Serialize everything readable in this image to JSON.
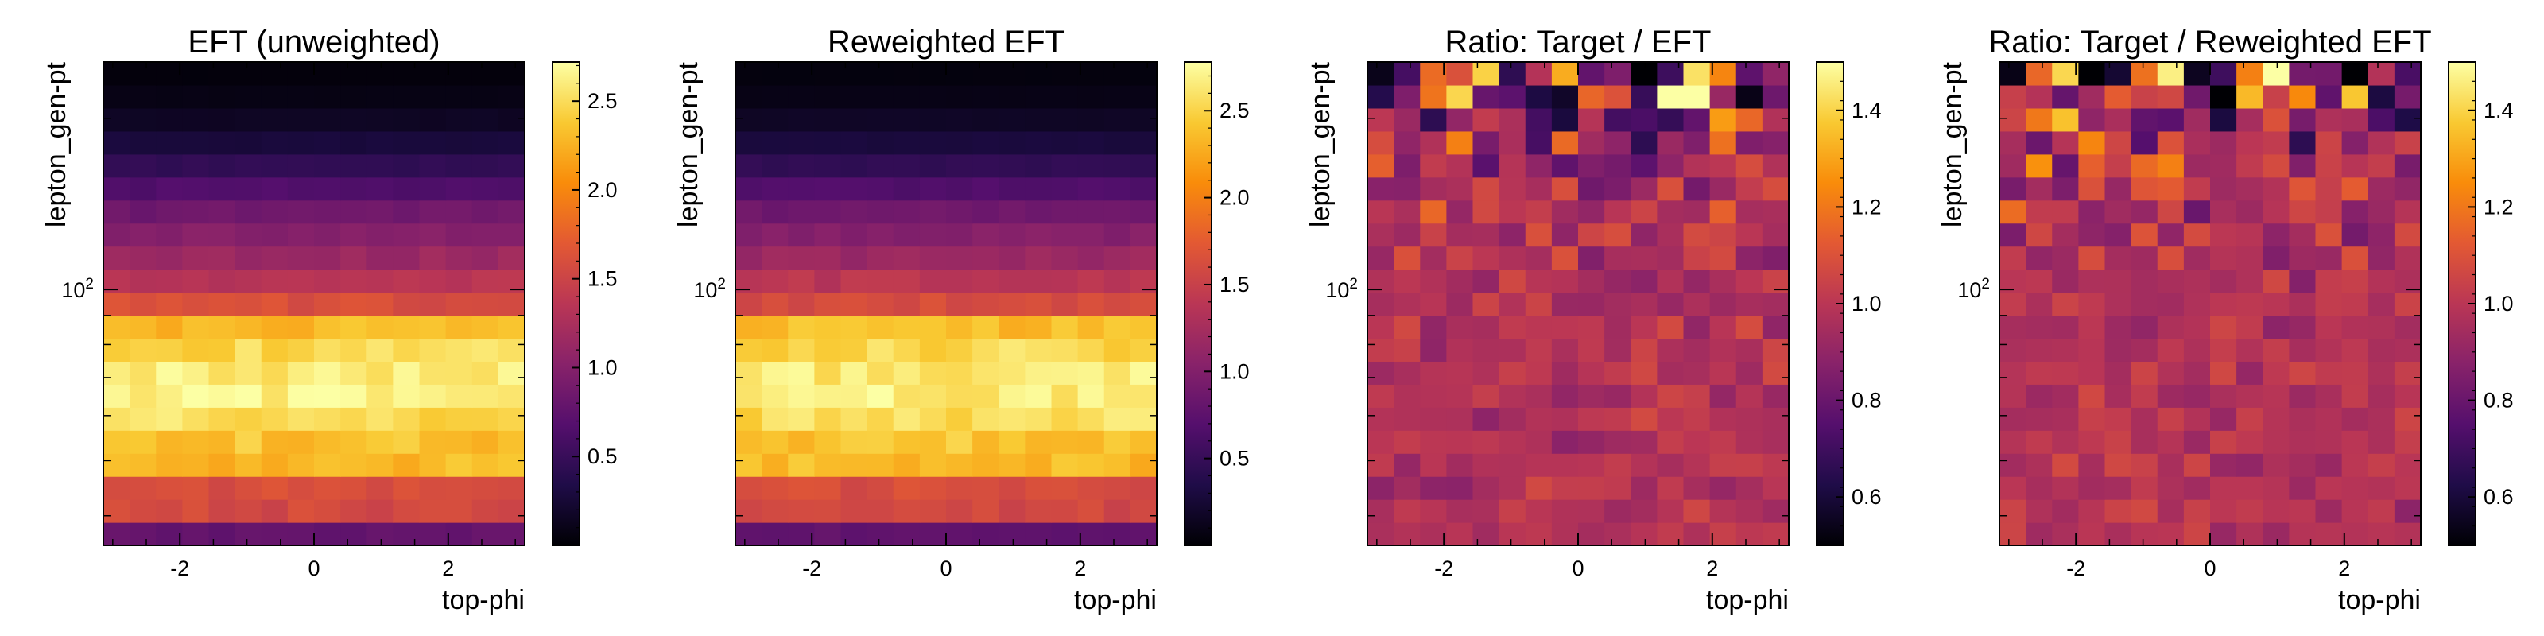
{
  "chart_data": [
    {
      "type": "heatmap",
      "title": "EFT (unweighted)",
      "xlabel": "top-phi",
      "ylabel": "lepton_gen-pt",
      "xlim": [
        -3.14,
        3.14
      ],
      "ylim_log10": [
        1.55,
        2.4
      ],
      "x_ticks": [
        -2,
        0,
        2
      ],
      "x_tick_labels": [
        "-2",
        "0",
        "2"
      ],
      "y_tick_label": "10",
      "y_tick_exp": "2",
      "colorbar_range": [
        0.0,
        2.72
      ],
      "colorbar_ticks": [
        0.5,
        1.0,
        1.5,
        2.0,
        2.5
      ],
      "colorbar_tick_labels": [
        "0.5",
        "1.0",
        "1.5",
        "2.0",
        "2.5"
      ],
      "colormap": "inferno",
      "nx": 16,
      "row_profile": [
        0.78,
        1.55,
        1.6,
        2.3,
        2.35,
        2.5,
        2.62,
        2.6,
        2.48,
        2.3,
        1.6,
        1.35,
        1.15,
        1.0,
        0.85,
        0.65,
        0.45,
        0.28,
        0.16,
        0.08,
        0.04
      ],
      "noise_amplitude": 0.05
    },
    {
      "type": "heatmap",
      "title": "Reweighted EFT",
      "xlabel": "top-phi",
      "ylabel": "lepton_gen-pt",
      "xlim": [
        -3.14,
        3.14
      ],
      "ylim_log10": [
        1.55,
        2.4
      ],
      "x_ticks": [
        -2,
        0,
        2
      ],
      "x_tick_labels": [
        "-2",
        "0",
        "2"
      ],
      "y_tick_label": "10",
      "y_tick_exp": "2",
      "colorbar_range": [
        0.0,
        2.78
      ],
      "colorbar_ticks": [
        0.5,
        1.0,
        1.5,
        2.0,
        2.5
      ],
      "colorbar_tick_labels": [
        "0.5",
        "1.0",
        "1.5",
        "2.0",
        "2.5"
      ],
      "colormap": "inferno",
      "nx": 16,
      "row_profile": [
        0.78,
        1.58,
        1.62,
        2.35,
        2.4,
        2.55,
        2.68,
        2.64,
        2.52,
        2.35,
        1.62,
        1.38,
        1.17,
        1.02,
        0.87,
        0.67,
        0.46,
        0.29,
        0.17,
        0.09,
        0.05
      ],
      "noise_amplitude": 0.05
    },
    {
      "type": "heatmap",
      "title": "Ratio: Target / EFT",
      "xlabel": "top-phi",
      "ylabel": "lepton_gen-pt",
      "xlim": [
        -3.14,
        3.14
      ],
      "ylim_log10": [
        1.55,
        2.4
      ],
      "x_ticks": [
        -2,
        0,
        2
      ],
      "x_tick_labels": [
        "-2",
        "0",
        "2"
      ],
      "y_tick_label": "10",
      "y_tick_exp": "2",
      "colorbar_range": [
        0.5,
        1.5
      ],
      "colorbar_ticks": [
        0.6,
        0.8,
        1.0,
        1.2,
        1.4
      ],
      "colorbar_tick_labels": [
        "0.6",
        "0.8",
        "1.0",
        "1.2",
        "1.4"
      ],
      "colormap": "inferno",
      "nx": 16,
      "center_value": 1.0,
      "row_spread": [
        0.05,
        0.05,
        0.05,
        0.05,
        0.05,
        0.05,
        0.05,
        0.05,
        0.05,
        0.05,
        0.05,
        0.06,
        0.07,
        0.08,
        0.09,
        0.11,
        0.14,
        0.18,
        0.23,
        0.3,
        0.38
      ]
    },
    {
      "type": "heatmap",
      "title": "Ratio: Target / Reweighted EFT",
      "xlabel": "top-phi",
      "ylabel": "lepton_gen-pt",
      "xlim": [
        -3.14,
        3.14
      ],
      "ylim_log10": [
        1.55,
        2.4
      ],
      "x_ticks": [
        -2,
        0,
        2
      ],
      "x_tick_labels": [
        "-2",
        "0",
        "2"
      ],
      "y_tick_label": "10",
      "y_tick_exp": "2",
      "colorbar_range": [
        0.5,
        1.5
      ],
      "colorbar_ticks": [
        0.6,
        0.8,
        1.0,
        1.2,
        1.4
      ],
      "colorbar_tick_labels": [
        "0.6",
        "0.8",
        "1.0",
        "1.2",
        "1.4"
      ],
      "colormap": "inferno",
      "nx": 16,
      "center_value": 1.0,
      "row_spread": [
        0.05,
        0.05,
        0.05,
        0.05,
        0.05,
        0.05,
        0.05,
        0.05,
        0.05,
        0.05,
        0.05,
        0.06,
        0.07,
        0.08,
        0.09,
        0.11,
        0.14,
        0.18,
        0.23,
        0.3,
        0.38
      ]
    }
  ]
}
